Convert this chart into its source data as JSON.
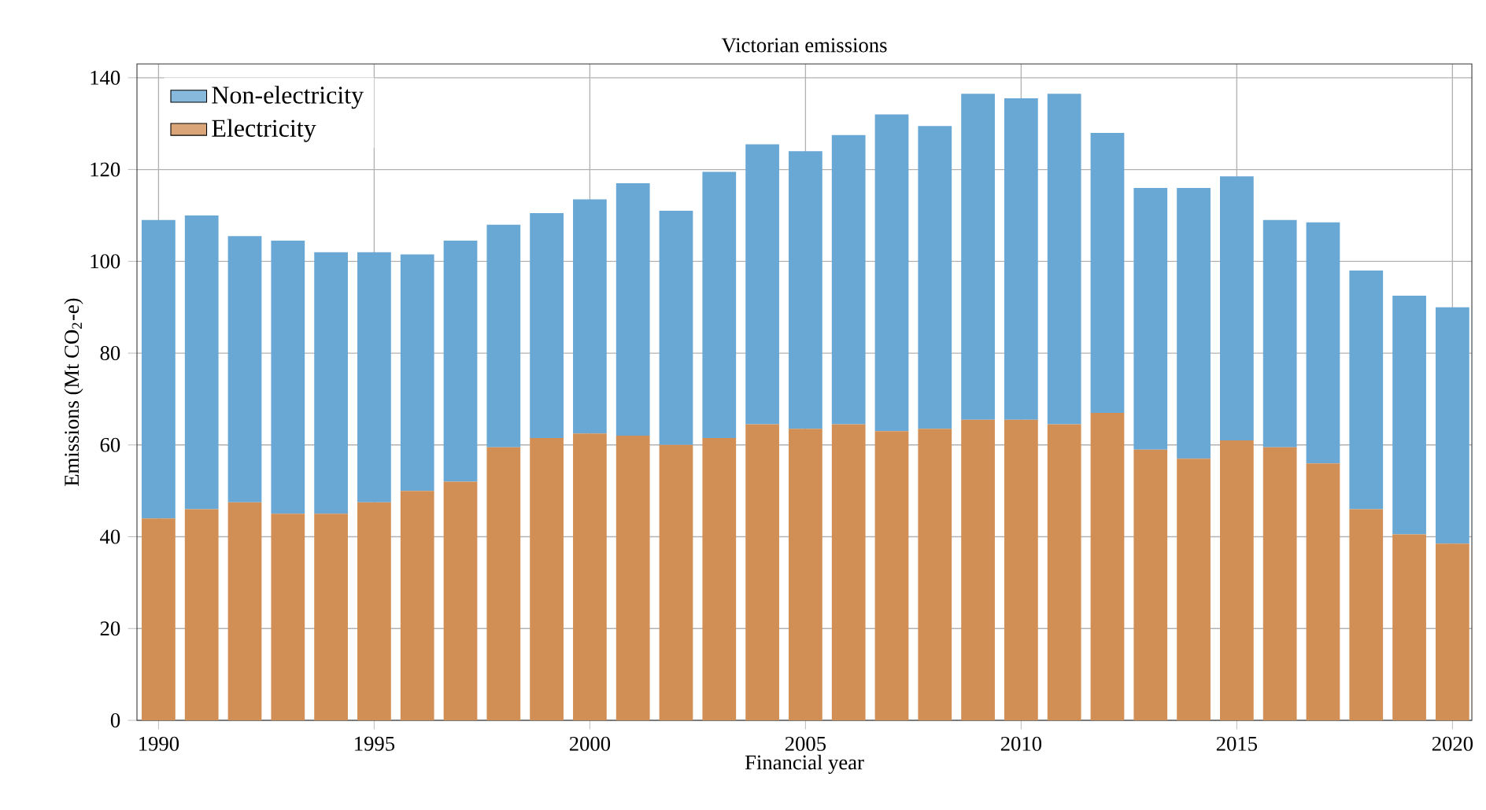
{
  "chart_data": {
    "type": "bar",
    "title": "Victorian emissions",
    "xlabel": "Financial year",
    "ylabel": "Emissions (Mt CO$_{2}$-e)",
    "x": [
      1990,
      1991,
      1992,
      1993,
      1994,
      1995,
      1996,
      1997,
      1998,
      1999,
      2000,
      2001,
      2002,
      2003,
      2004,
      2005,
      2006,
      2007,
      2008,
      2009,
      2010,
      2011,
      2012,
      2013,
      2014,
      2015,
      2016,
      2017,
      2018,
      2019,
      2020
    ],
    "stacked": true,
    "series": [
      {
        "name": "Electricity",
        "color": "#d18f56",
        "values": [
          44,
          46,
          47.5,
          45,
          45,
          47.5,
          50,
          52,
          59.5,
          61.5,
          62.5,
          62,
          60,
          61.5,
          64.5,
          63.5,
          64.5,
          63,
          63.5,
          65.5,
          65.5,
          64.5,
          67,
          59,
          57,
          61,
          59.5,
          56,
          46,
          40.5,
          38.5
        ]
      },
      {
        "name": "Non-electricity",
        "color": "#69a7d4",
        "values": [
          65,
          64,
          58,
          59.5,
          57,
          54.5,
          51.5,
          52.5,
          48.5,
          49,
          51,
          55,
          51,
          58,
          61,
          60.5,
          63,
          69,
          66,
          71,
          70,
          72,
          61,
          57,
          59,
          57.5,
          49.5,
          52.5,
          52,
          52,
          51.5
        ]
      }
    ],
    "xlim": [
      1989.5,
      2020.45
    ],
    "xticks": [
      1990,
      1995,
      2000,
      2005,
      2010,
      2015,
      2020
    ],
    "ylim": [
      0,
      143
    ],
    "yticks": [
      0,
      20,
      40,
      60,
      80,
      100,
      120,
      140
    ],
    "grid": true,
    "legend": "top left"
  }
}
